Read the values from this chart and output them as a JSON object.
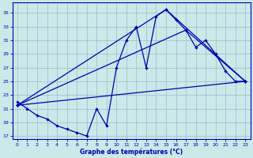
{
  "title": "Graphe des températures (°C)",
  "background_color": "#cce8e8",
  "line_color": "#0000aa",
  "grid_color": "#99bbcc",
  "xlim": [
    -0.5,
    23.5
  ],
  "ylim": [
    16.5,
    36.5
  ],
  "xticks": [
    0,
    1,
    2,
    3,
    4,
    5,
    6,
    7,
    8,
    9,
    10,
    11,
    12,
    13,
    14,
    15,
    16,
    17,
    18,
    19,
    20,
    21,
    22,
    23
  ],
  "yticks": [
    17,
    19,
    21,
    23,
    25,
    27,
    29,
    31,
    33,
    35
  ],
  "line1_x": [
    0,
    1,
    2,
    3,
    4,
    5,
    6,
    7,
    8,
    9,
    10,
    11,
    12,
    13,
    14,
    15,
    16,
    17,
    18,
    19,
    20,
    21,
    22,
    23
  ],
  "line1_y": [
    22.0,
    21.0,
    20.0,
    19.5,
    18.5,
    18.0,
    17.5,
    17.0,
    21.0,
    18.5,
    27.0,
    31.0,
    33.0,
    27.0,
    34.5,
    35.5,
    34.0,
    32.5,
    30.0,
    31.0,
    29.0,
    26.5,
    25.0,
    25.0
  ],
  "line2_x": [
    0,
    23
  ],
  "line2_y": [
    21.5,
    25.0
  ],
  "line3_x": [
    0,
    15,
    23
  ],
  "line3_y": [
    21.5,
    35.5,
    25.0
  ],
  "line4_x": [
    0,
    17,
    23
  ],
  "line4_y": [
    21.5,
    32.5,
    25.0
  ]
}
